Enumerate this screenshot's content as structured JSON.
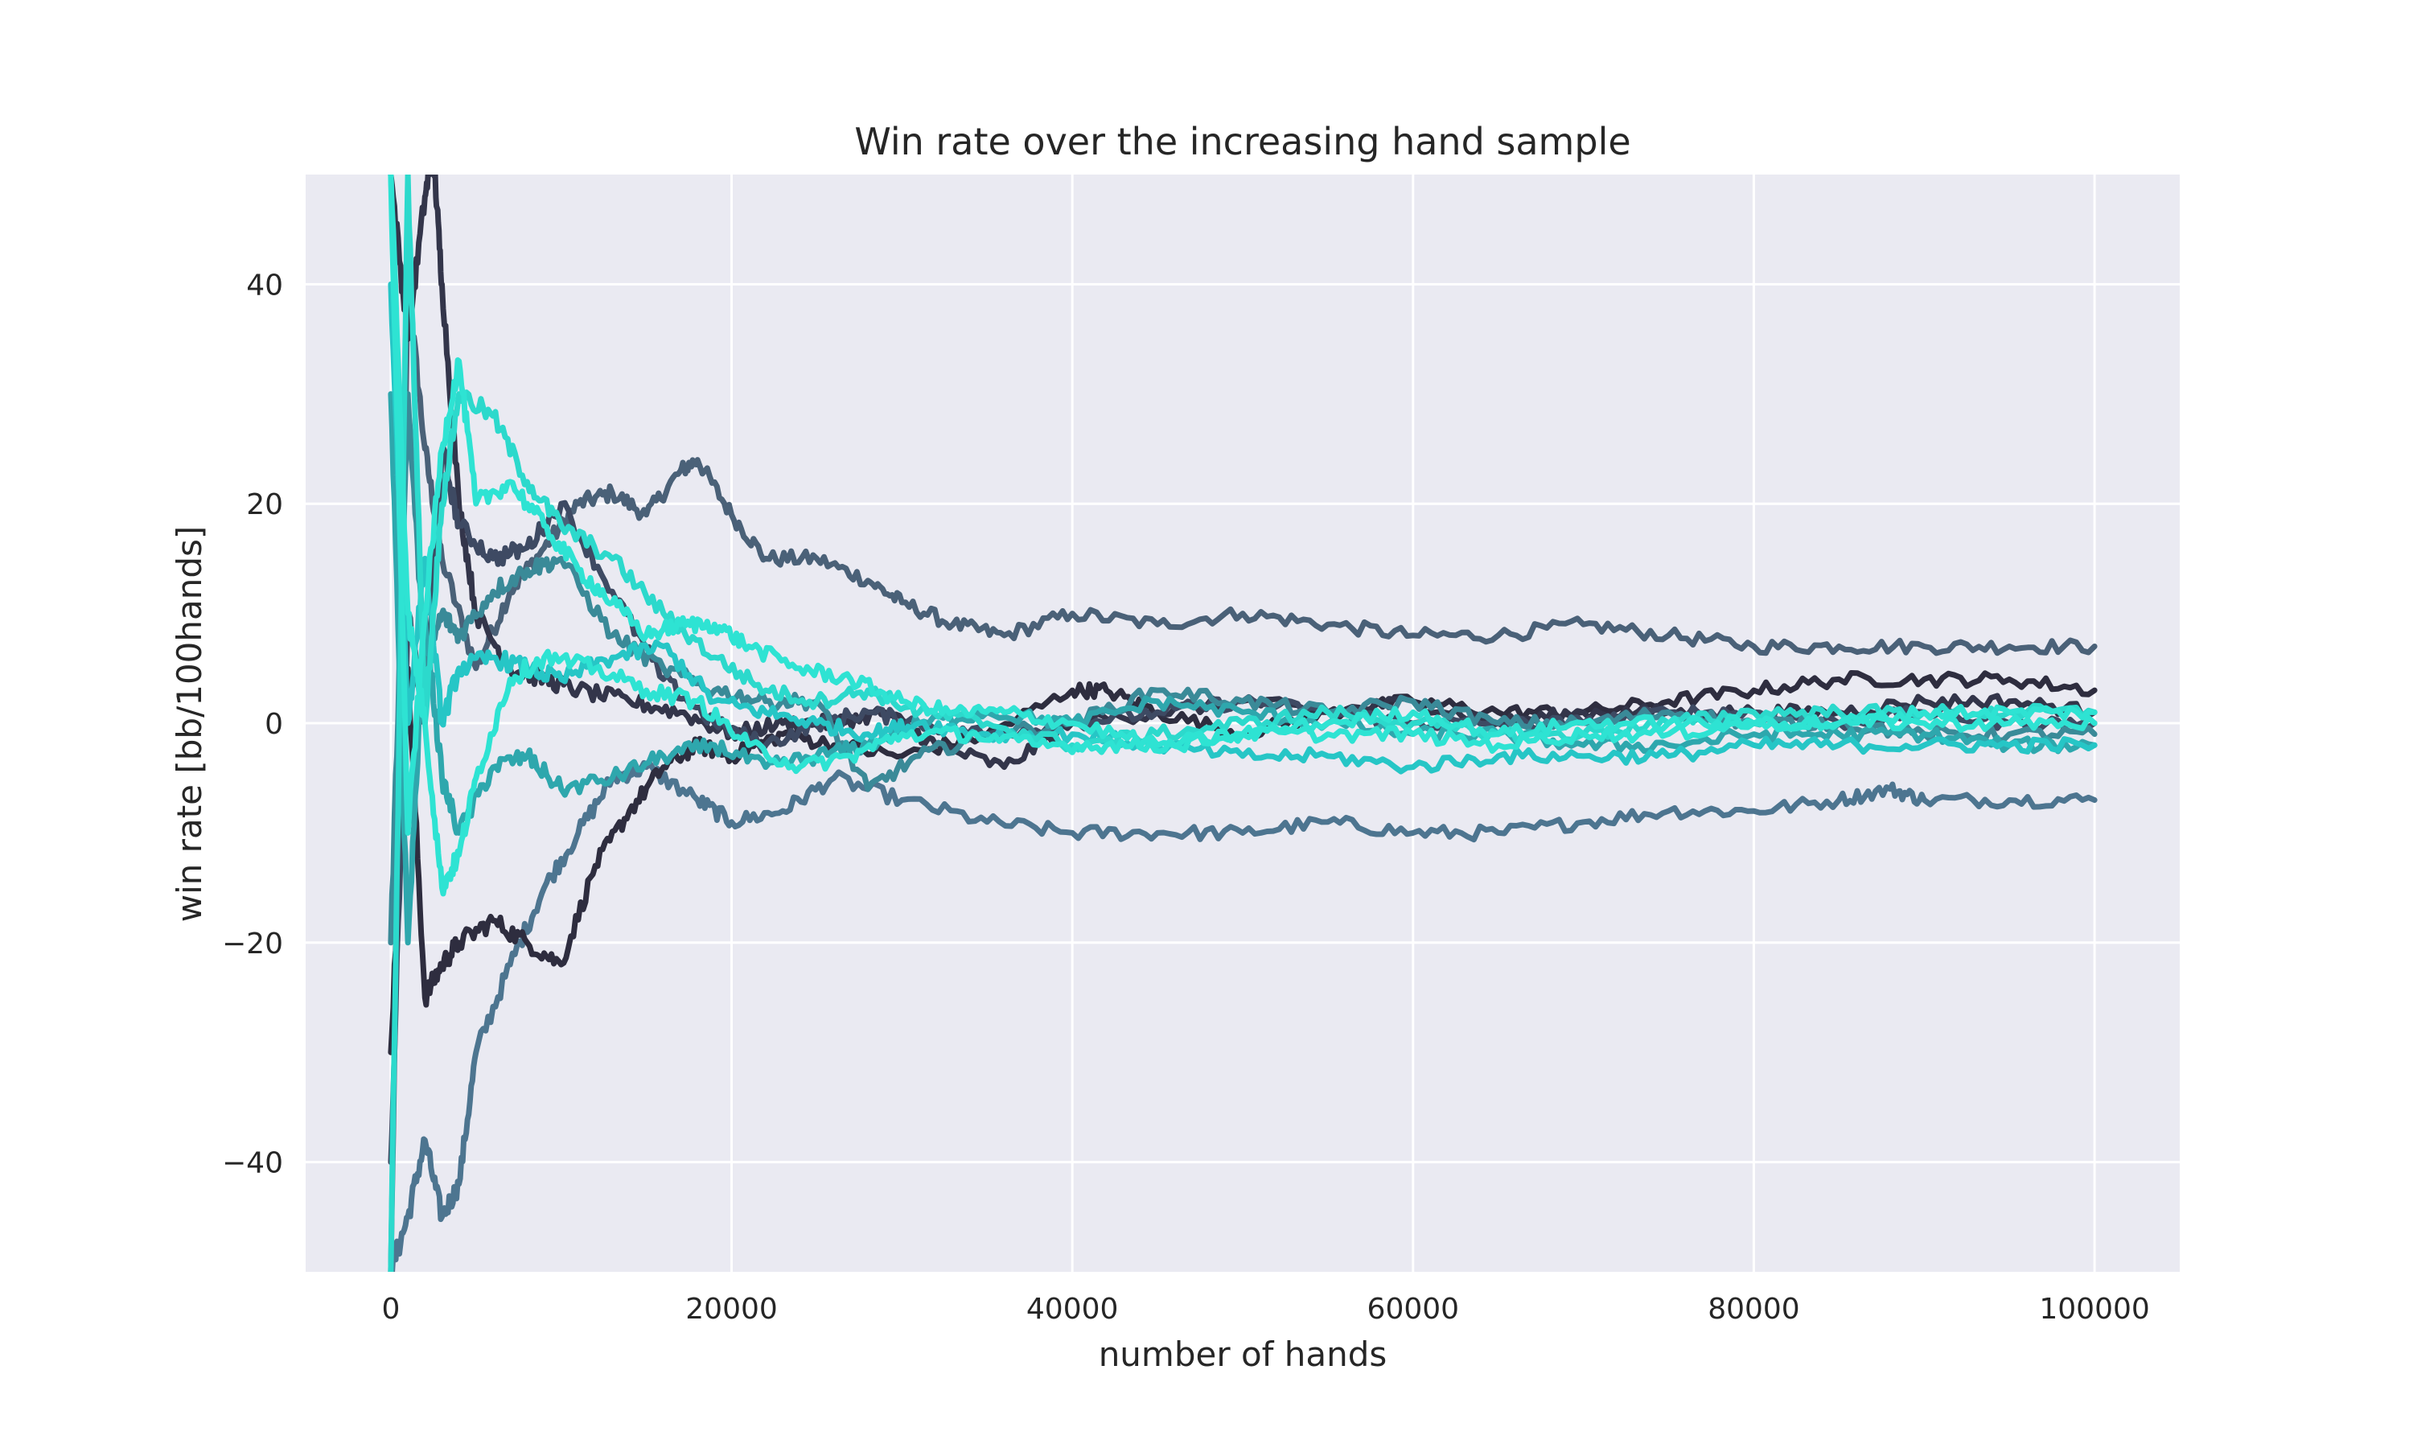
{
  "chart_data": {
    "type": "line",
    "title": "Win rate over the increasing hand sample",
    "xlabel": "number of hands",
    "ylabel": "win rate [bb/100hands]",
    "xlim": [
      -5000,
      105000
    ],
    "ylim": [
      -50,
      50
    ],
    "xticks": [
      0,
      20000,
      40000,
      60000,
      80000,
      100000
    ],
    "yticks": [
      -40,
      -20,
      0,
      20,
      40
    ],
    "ytick_labels": [
      "−40",
      "−20",
      "0",
      "20",
      "40"
    ],
    "grid": true,
    "legend": "none",
    "background_color": "#eaeaf2",
    "grid_color": "#ffffff",
    "series": [
      {
        "color": "#4a6178",
        "x": [
          0,
          1000,
          2000,
          3000,
          5000,
          7000,
          9000,
          11000,
          13000,
          15000,
          17000,
          18000,
          20000,
          22000,
          25000,
          28000,
          30000,
          33000,
          36000,
          40000,
          45000,
          50000,
          55000,
          60000,
          65000,
          70000,
          75000,
          80000,
          85000,
          90000,
          95000,
          100000
        ],
        "y": [
          -50,
          40,
          25,
          15,
          5,
          12,
          16,
          20,
          21,
          19,
          23,
          24,
          19,
          15,
          15,
          13,
          11,
          9,
          8,
          10,
          9,
          10,
          9,
          8,
          8,
          9,
          8,
          7,
          7,
          7,
          7,
          7
        ]
      },
      {
        "color": "#4d7590",
        "x": [
          0,
          1000,
          2000,
          3000,
          4000,
          5000,
          7000,
          9000,
          11000,
          13000,
          15000,
          18000,
          20000,
          23000,
          26000,
          30000,
          35000,
          40000,
          45000,
          50000,
          55000,
          60000,
          65000,
          70000,
          75000,
          80000,
          85000,
          88000,
          90000,
          95000,
          100000
        ],
        "y": [
          -50,
          -45,
          -38,
          -45,
          -42,
          -30,
          -22,
          -15,
          -10,
          -5,
          -4,
          -7,
          -9,
          -8,
          -5,
          -7,
          -9,
          -10,
          -10,
          -10,
          -9,
          -10,
          -10,
          -9,
          -8,
          -8,
          -7,
          -6,
          -7,
          -7,
          -7
        ]
      },
      {
        "color": "#2e2d3f",
        "x": [
          0,
          1000,
          2000,
          3000,
          4000,
          6000,
          8000,
          10000,
          12000,
          14000,
          16000,
          18000,
          20000,
          23000,
          26000,
          30000,
          35000,
          40000,
          42000,
          45000,
          50000,
          55000,
          60000,
          65000,
          70000,
          75000,
          80000,
          85000,
          90000,
          95000,
          100000
        ],
        "y": [
          -30,
          5,
          -25,
          -22,
          -20,
          -18,
          -20,
          -22,
          -13,
          -8,
          -4,
          -2,
          -3,
          -1,
          -2,
          -3,
          -1,
          3,
          3,
          1,
          -1,
          1,
          2,
          1,
          1,
          2,
          3,
          4,
          4,
          4,
          3
        ]
      },
      {
        "color": "#33354a",
        "x": [
          0,
          1000,
          2000,
          2500,
          3000,
          4000,
          5000,
          7000,
          9000,
          11000,
          14000,
          17000,
          20000,
          23000,
          26000,
          29000,
          32000,
          36000,
          40000,
          45000,
          50000,
          55000,
          60000,
          65000,
          70000,
          75000,
          80000,
          85000,
          90000,
          95000,
          100000
        ],
        "y": [
          50,
          35,
          48,
          52,
          40,
          20,
          10,
          5,
          4,
          3,
          2,
          1,
          -1,
          0,
          0,
          1,
          -2,
          -4,
          0,
          1,
          2,
          1,
          2,
          0,
          1,
          1,
          1,
          1,
          2,
          2,
          1
        ]
      },
      {
        "color": "#3e4a63",
        "x": [
          0,
          1000,
          2000,
          3000,
          4000,
          6000,
          8000,
          10000,
          13000,
          16000,
          19000,
          22000,
          25000,
          28000,
          31000,
          35000,
          40000,
          45000,
          50000,
          55000,
          60000,
          65000,
          70000,
          75000,
          80000,
          85000,
          90000,
          95000,
          100000
        ],
        "y": [
          -40,
          10,
          0,
          25,
          18,
          15,
          16,
          20,
          12,
          4,
          0,
          -2,
          0,
          1,
          0,
          -1,
          0,
          1,
          2,
          1,
          0,
          0,
          0,
          1,
          1,
          0,
          1,
          0,
          0
        ]
      },
      {
        "color": "#3a8a98",
        "x": [
          0,
          1000,
          2000,
          3000,
          4000,
          6000,
          8000,
          10000,
          13000,
          16000,
          19000,
          22000,
          25000,
          28000,
          31000,
          35000,
          40000,
          45000,
          50000,
          55000,
          60000,
          65000,
          70000,
          75000,
          80000,
          85000,
          90000,
          95000,
          100000
        ],
        "y": [
          -20,
          30,
          5,
          10,
          8,
          12,
          14,
          15,
          8,
          5,
          3,
          2,
          2,
          -6,
          -3,
          -1,
          0,
          3,
          2,
          1,
          2,
          0,
          0,
          1,
          0,
          0,
          -1,
          -1,
          -1
        ]
      },
      {
        "color": "#2ea7ad",
        "x": [
          0,
          1000,
          2000,
          3000,
          4000,
          6000,
          8000,
          10000,
          13000,
          16000,
          19000,
          22000,
          25000,
          28000,
          31000,
          35000,
          40000,
          45000,
          50000,
          55000,
          60000,
          65000,
          70000,
          75000,
          80000,
          85000,
          90000,
          95000,
          100000
        ],
        "y": [
          30,
          -20,
          10,
          -5,
          -10,
          -4,
          -3,
          -6,
          -5,
          -3,
          -2,
          -4,
          -3,
          -2,
          0,
          1,
          0,
          2,
          1,
          0,
          -1,
          -1,
          -2,
          -2,
          -1,
          -1,
          -1,
          -2,
          -2
        ]
      },
      {
        "color": "#26c6c6",
        "x": [
          0,
          1000,
          2000,
          3000,
          4000,
          6000,
          8000,
          10000,
          13000,
          16000,
          19000,
          22000,
          25000,
          28000,
          31000,
          35000,
          40000,
          45000,
          50000,
          55000,
          60000,
          65000,
          70000,
          75000,
          80000,
          85000,
          90000,
          95000,
          100000
        ],
        "y": [
          40,
          0,
          15,
          0,
          5,
          6,
          5,
          4,
          6,
          7,
          2,
          1,
          0,
          -1,
          0,
          -1,
          -1,
          -2,
          -3,
          -3,
          -4,
          -3,
          -3,
          -3,
          -2,
          -2,
          -2,
          -2,
          -2
        ]
      },
      {
        "color": "#2cd9cc",
        "x": [
          0,
          1000,
          2000,
          3000,
          4000,
          6000,
          8000,
          10000,
          13000,
          16000,
          19000,
          22000,
          25000,
          28000,
          31000,
          35000,
          40000,
          45000,
          50000,
          55000,
          60000,
          65000,
          70000,
          75000,
          80000,
          85000,
          90000,
          95000,
          100000
        ],
        "y": [
          -50,
          50,
          0,
          20,
          30,
          28,
          22,
          18,
          15,
          10,
          6,
          3,
          2,
          3,
          1,
          0,
          -2,
          -1,
          0,
          1,
          0,
          -1,
          -1,
          0,
          1,
          1,
          1,
          1,
          1
        ]
      },
      {
        "color": "#2ee3d3",
        "x": [
          0,
          1000,
          2000,
          3000,
          4000,
          5000,
          7000,
          9000,
          11000,
          13000,
          15000,
          17000,
          19000,
          21000,
          24000,
          27000,
          30000,
          33000,
          36000,
          40000,
          45000,
          50000,
          55000,
          60000,
          65000,
          70000,
          75000,
          80000,
          85000,
          90000,
          95000,
          100000
        ],
        "y": [
          50,
          -10,
          10,
          25,
          33,
          20,
          22,
          18,
          14,
          11,
          8,
          9,
          9,
          7,
          5,
          4,
          2,
          1,
          1,
          0,
          -2,
          -1,
          0,
          1,
          -1,
          0,
          0,
          0,
          0,
          1,
          1,
          1
        ]
      },
      {
        "color": "#2ee3d3",
        "x": [
          0,
          1000,
          2000,
          3000,
          4000,
          5000,
          7000,
          9000,
          12000,
          15000,
          18000,
          21000,
          24000,
          27000,
          30000,
          34000,
          38000,
          42000,
          46000,
          50000,
          55000,
          60000,
          65000,
          70000,
          75000,
          80000,
          85000,
          90000,
          95000,
          100000
        ],
        "y": [
          50,
          10,
          0,
          -15,
          -12,
          -5,
          4,
          6,
          5,
          3,
          2,
          -2,
          -4,
          -3,
          -1,
          -1,
          -2,
          -2,
          -2,
          -1,
          -1,
          -1,
          -2,
          -1,
          -1,
          0,
          0,
          0,
          0,
          0
        ]
      }
    ]
  }
}
